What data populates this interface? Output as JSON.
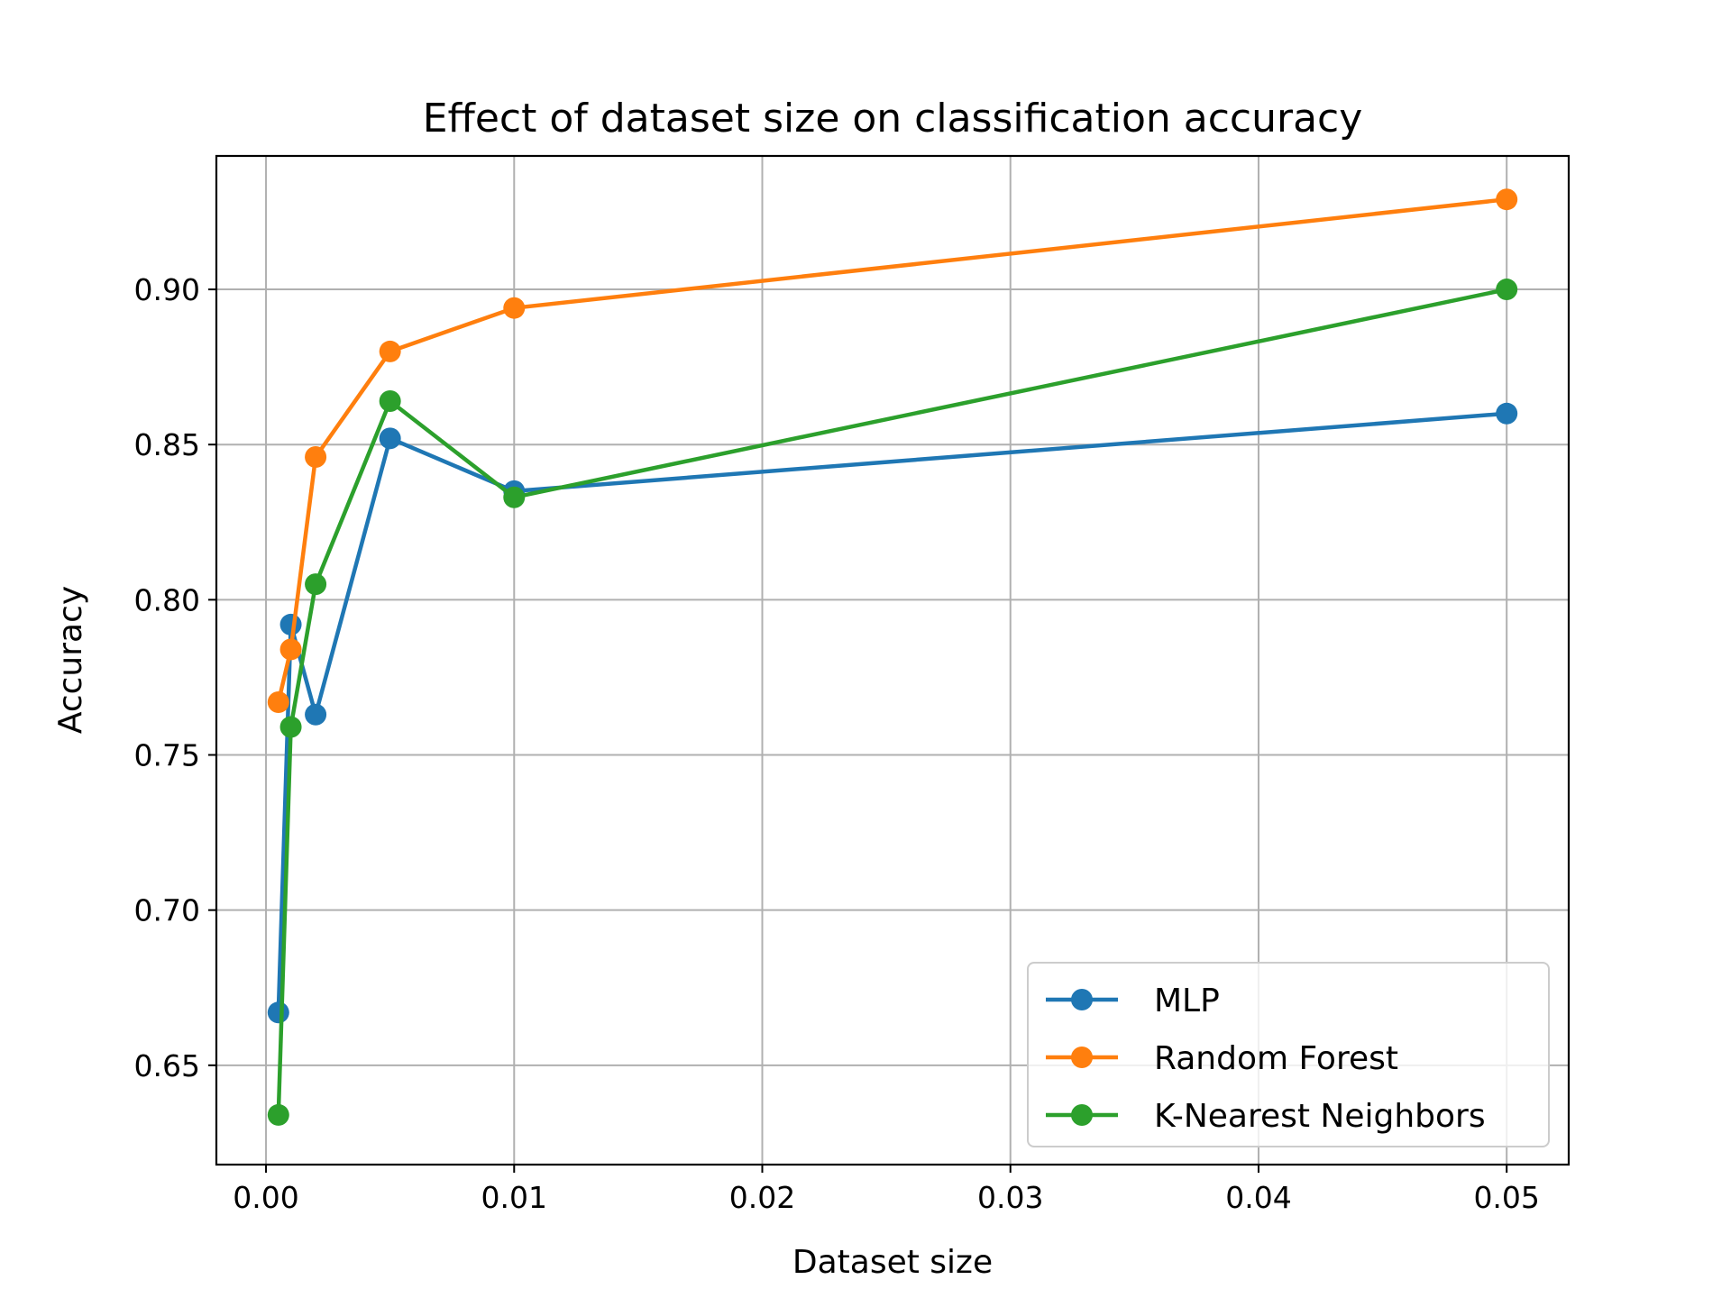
{
  "chart_data": {
    "type": "line",
    "title": "Effect of dataset size on classification accuracy",
    "xlabel": "Dataset size",
    "ylabel": "Accuracy",
    "xlim": [
      -0.002,
      0.0525
    ],
    "ylim": [
      0.618,
      0.943
    ],
    "xticks": [
      0.0,
      0.01,
      0.02,
      0.03,
      0.04,
      0.05
    ],
    "xtick_labels": [
      "0.00",
      "0.01",
      "0.02",
      "0.03",
      "0.04",
      "0.05"
    ],
    "yticks": [
      0.65,
      0.7,
      0.75,
      0.8,
      0.85,
      0.9
    ],
    "ytick_labels": [
      "0.65",
      "0.70",
      "0.75",
      "0.80",
      "0.85",
      "0.90"
    ],
    "grid": true,
    "legend_position": "bottom-right",
    "x": [
      0.0005,
      0.001,
      0.002,
      0.005,
      0.01,
      0.05
    ],
    "series": [
      {
        "name": "MLP",
        "color": "#1f77b4",
        "values": [
          0.667,
          0.792,
          0.763,
          0.852,
          0.835,
          0.86
        ]
      },
      {
        "name": "Random Forest",
        "color": "#ff7f0e",
        "values": [
          0.767,
          0.784,
          0.846,
          0.88,
          0.894,
          0.929
        ]
      },
      {
        "name": "K-Nearest Neighbors",
        "color": "#2ca02c",
        "values": [
          0.634,
          0.759,
          0.805,
          0.864,
          0.833,
          0.9
        ]
      }
    ]
  }
}
